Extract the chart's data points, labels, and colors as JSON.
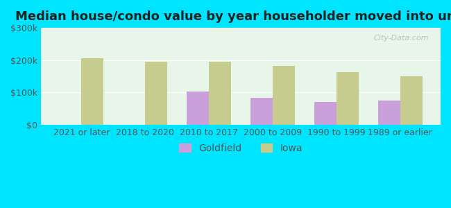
{
  "title": "Median house/condo value by year householder moved into unit",
  "categories": [
    "2021 or later",
    "2018 to 2020",
    "2010 to 2017",
    "2000 to 2009",
    "1990 to 1999",
    "1989 or earlier"
  ],
  "goldfield_values": [
    0,
    0,
    103000,
    84000,
    72000,
    76000
  ],
  "iowa_values": [
    205000,
    196000,
    195000,
    182000,
    163000,
    150000
  ],
  "goldfield_color": "#c9a0dc",
  "iowa_color": "#c5cc8e",
  "background_outer": "#00e5ff",
  "background_inner_top": "#e8f5e9",
  "background_inner_bottom": "#c8e6c9",
  "ylim": [
    0,
    300000
  ],
  "yticks": [
    0,
    100000,
    200000,
    300000
  ],
  "ytick_labels": [
    "$0",
    "$100k",
    "$200k",
    "$300k"
  ],
  "watermark": "City-Data.com",
  "legend_labels": [
    "Goldfield",
    "Iowa"
  ],
  "bar_width": 0.35,
  "title_fontsize": 13,
  "tick_fontsize": 9,
  "legend_fontsize": 10
}
